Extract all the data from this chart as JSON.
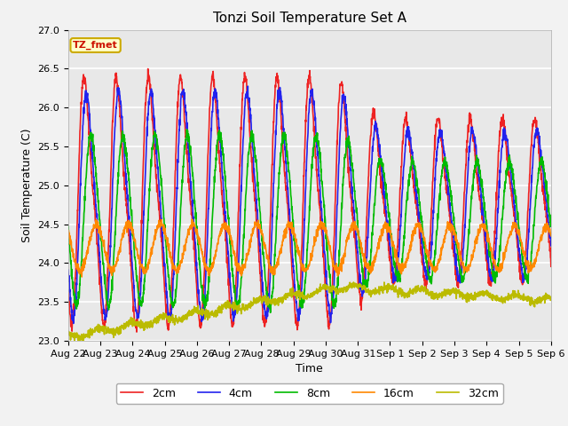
{
  "title": "Tonzi Soil Temperature Set A",
  "xlabel": "Time",
  "ylabel": "Soil Temperature (C)",
  "ylim": [
    23.0,
    27.0
  ],
  "yticks": [
    23.0,
    23.5,
    24.0,
    24.5,
    25.0,
    25.5,
    26.0,
    26.5,
    27.0
  ],
  "legend_label": "TZ_fmet",
  "legend_entries": [
    "2cm",
    "4cm",
    "8cm",
    "16cm",
    "32cm"
  ],
  "line_colors": [
    "#EE2222",
    "#2222EE",
    "#00BB00",
    "#FF8800",
    "#BBBB00"
  ],
  "xtick_labels": [
    "Aug 22",
    "Aug 23",
    "Aug 24",
    "Aug 25",
    "Aug 26",
    "Aug 27",
    "Aug 28",
    "Aug 29",
    "Aug 30",
    "Aug 31",
    "Sep 1",
    "Sep 2",
    "Sep 3",
    "Sep 4",
    "Sep 5",
    "Sep 6"
  ],
  "n_points": 2016,
  "total_days": 15
}
